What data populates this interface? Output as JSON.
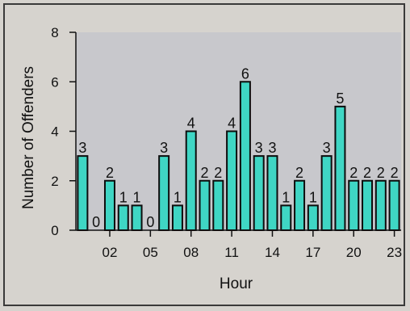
{
  "chart_data": {
    "type": "bar",
    "title": "",
    "xlabel": "Hour",
    "ylabel": "Number of Offenders",
    "ylim": [
      0,
      8
    ],
    "yticks": [
      0,
      2,
      4,
      6,
      8
    ],
    "xtick_labels": [
      "02",
      "05",
      "08",
      "11",
      "14",
      "17",
      "20",
      "23"
    ],
    "xtick_hours": [
      2,
      5,
      8,
      11,
      14,
      17,
      20,
      23
    ],
    "categories": [
      0,
      1,
      2,
      3,
      4,
      5,
      6,
      7,
      8,
      9,
      10,
      11,
      12,
      13,
      14,
      15,
      16,
      17,
      18,
      19,
      20,
      21,
      22,
      23
    ],
    "values": [
      3,
      0,
      2,
      1,
      1,
      0,
      3,
      1,
      4,
      2,
      2,
      4,
      6,
      3,
      3,
      1,
      2,
      1,
      3,
      5,
      2,
      2,
      2,
      2
    ],
    "bar_color": "#3fd6c4",
    "plot_background": "#c8c8cc",
    "grid": false,
    "legend": "none"
  }
}
